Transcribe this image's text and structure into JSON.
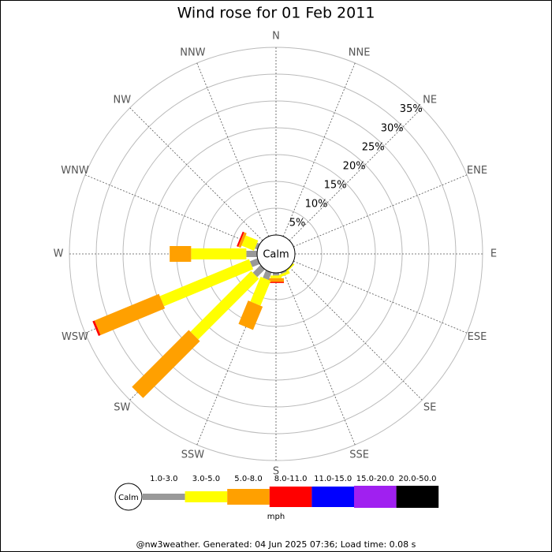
{
  "chart_data": {
    "type": "windrose",
    "title": "Wind rose for 01 Feb 2011",
    "categories": [
      "N",
      "NNE",
      "NE",
      "ENE",
      "E",
      "ESE",
      "SE",
      "SSE",
      "S",
      "SSW",
      "SW",
      "WSW",
      "W",
      "WNW",
      "NW",
      "NNW"
    ],
    "calm_label": "Calm",
    "unit": "mph",
    "footer": "@nw3weather. Generated: 04 Jun 2025 07:36; Load time: 0.08 s",
    "rlim": [
      0,
      35
    ],
    "rticks": [
      {
        "value": 5,
        "label": "5%"
      },
      {
        "value": 10,
        "label": "10%"
      },
      {
        "value": 15,
        "label": "15%"
      },
      {
        "value": 20,
        "label": "20%"
      },
      {
        "value": 25,
        "label": "25%"
      },
      {
        "value": 30,
        "label": "30%"
      },
      {
        "value": 35,
        "label": "35%"
      }
    ],
    "series": [
      {
        "name": "1.0-3.0",
        "color": "#999999",
        "values": [
          0,
          0,
          0,
          0,
          0,
          0,
          0,
          0.3,
          0.5,
          1.5,
          2,
          1.5,
          2,
          0.5,
          0,
          0
        ]
      },
      {
        "name": "3.0-5.0",
        "color": "#ffff00",
        "values": [
          0,
          0,
          0,
          0,
          0,
          0,
          0.3,
          0.5,
          0.5,
          5,
          16,
          18,
          10.3,
          2.5,
          0,
          0
        ]
      },
      {
        "name": "5.0-8.0",
        "color": "#ffa000",
        "values": [
          0,
          0,
          0,
          0,
          0,
          0,
          0,
          0,
          0.7,
          4.7,
          15,
          13,
          4,
          0.5,
          0,
          0
        ]
      },
      {
        "name": "8.0-11.0",
        "color": "#ff0000",
        "values": [
          0,
          0,
          0,
          0,
          0,
          0,
          0,
          0,
          0.2,
          0,
          0,
          0.4,
          0,
          0.3,
          0,
          0
        ]
      },
      {
        "name": "11.0-15.0",
        "color": "#0000ff",
        "values": [
          0,
          0,
          0,
          0,
          0,
          0,
          0,
          0,
          0,
          0,
          0,
          0,
          0,
          0,
          0,
          0
        ]
      },
      {
        "name": "15.0-20.0",
        "color": "#a020f0",
        "values": [
          0,
          0,
          0,
          0,
          0,
          0,
          0,
          0,
          0,
          0,
          0,
          0,
          0,
          0,
          0,
          0
        ]
      },
      {
        "name": "20.0-50.0",
        "color": "#000000",
        "values": [
          0,
          0,
          0,
          0,
          0,
          0,
          0,
          0,
          0,
          0,
          0,
          0,
          0,
          0,
          0,
          0
        ]
      }
    ]
  }
}
